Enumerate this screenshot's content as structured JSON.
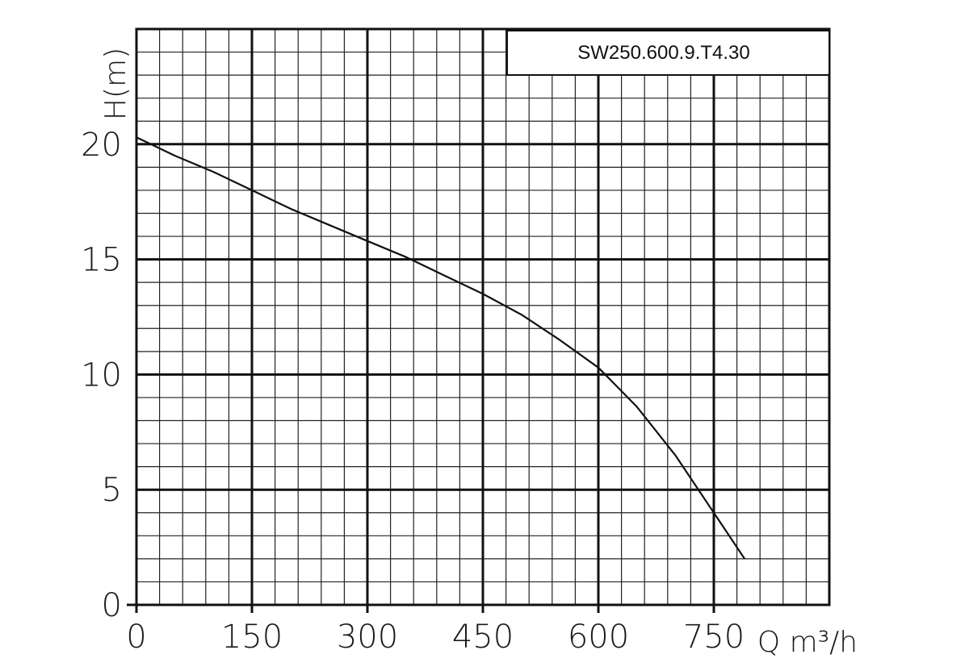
{
  "chart_data": {
    "type": "line",
    "title": "SW250.600.9.T4.30",
    "xlabel": "Q m³/h",
    "ylabel": "H(m)",
    "xlim": [
      0,
      900
    ],
    "ylim": [
      0,
      25
    ],
    "x_ticks": [
      "0",
      "150",
      "300",
      "450",
      "600",
      "750"
    ],
    "y_ticks": [
      "0",
      "5",
      "10",
      "15",
      "20"
    ],
    "grid": true,
    "legend": "none",
    "series": [
      {
        "x": [
          0,
          50,
          100,
          150,
          200,
          250,
          300,
          350,
          400,
          450,
          500,
          550,
          600,
          650,
          700,
          750,
          790
        ],
        "y": [
          20.3,
          19.5,
          18.8,
          18.0,
          17.2,
          16.5,
          15.8,
          15.1,
          14.3,
          13.5,
          12.6,
          11.5,
          10.3,
          8.6,
          6.5,
          4.0,
          2.0
        ]
      }
    ]
  }
}
